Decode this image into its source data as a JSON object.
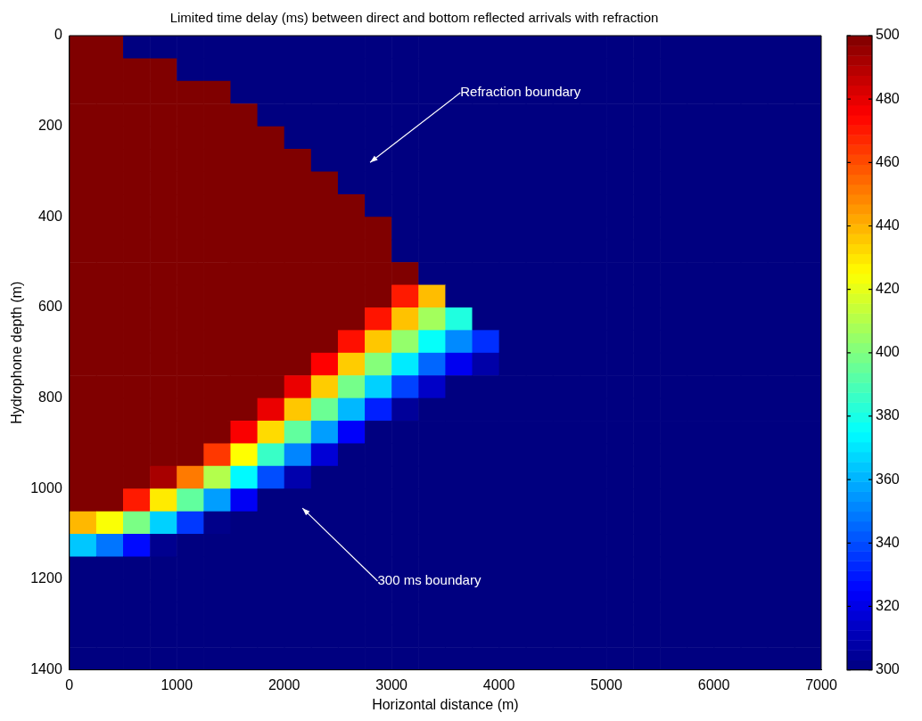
{
  "chart_data": {
    "type": "heatmap",
    "title": "Limited time delay (ms) between direct and bottom reflected arrivals with refraction",
    "xlabel": "Horizontal distance (m)",
    "ylabel": "Hydrophone depth (m)",
    "xlim": [
      0,
      7000
    ],
    "xticks": [
      0,
      1000,
      2000,
      3000,
      4000,
      5000,
      6000,
      7000
    ],
    "ylim": [
      1400,
      0
    ],
    "yticks": [
      0,
      200,
      400,
      600,
      800,
      1000,
      1200,
      1400
    ],
    "clim": [
      300,
      500
    ],
    "cticks": [
      300,
      320,
      340,
      360,
      380,
      400,
      420,
      440,
      460,
      480,
      500
    ],
    "annotations": [
      "Refraction boundary",
      "300 ms boundary"
    ],
    "x": [
      125,
      375,
      625,
      875,
      1125,
      1375,
      1625,
      1875,
      2125,
      2375,
      2625,
      2875,
      3125,
      3375,
      3625,
      3875,
      4125,
      4375,
      4625,
      4875,
      5125,
      5375,
      5625,
      5875,
      6125,
      6375,
      6625,
      6875
    ],
    "y": [
      25,
      75,
      125,
      175,
      225,
      275,
      325,
      375,
      425,
      475,
      525,
      575,
      625,
      675,
      725,
      775,
      825,
      875,
      925,
      975,
      1025,
      1075,
      1125,
      1175,
      1225,
      1275,
      1325,
      1375
    ],
    "cells": [
      [
        500,
        500,
        300,
        300,
        300,
        300,
        300,
        300,
        300,
        300,
        300,
        300,
        300,
        300,
        300,
        300,
        300,
        300,
        300,
        300,
        300,
        300,
        300,
        300,
        300,
        300,
        300,
        300
      ],
      [
        500,
        500,
        500,
        500,
        300,
        300,
        300,
        300,
        300,
        300,
        300,
        300,
        300,
        300,
        300,
        300,
        300,
        300,
        300,
        300,
        300,
        300,
        300,
        300,
        300,
        300,
        300,
        300
      ],
      [
        500,
        500,
        500,
        500,
        500,
        500,
        300,
        300,
        300,
        300,
        300,
        300,
        300,
        300,
        300,
        300,
        300,
        300,
        300,
        300,
        300,
        300,
        300,
        300,
        300,
        300,
        300,
        300
      ],
      [
        500,
        500,
        500,
        500,
        500,
        500,
        500,
        300,
        300,
        300,
        300,
        300,
        300,
        300,
        300,
        300,
        300,
        300,
        300,
        300,
        300,
        300,
        300,
        300,
        300,
        300,
        300,
        300
      ],
      [
        500,
        500,
        500,
        500,
        500,
        500,
        500,
        500,
        300,
        300,
        300,
        300,
        300,
        300,
        300,
        300,
        300,
        300,
        300,
        300,
        300,
        300,
        300,
        300,
        300,
        300,
        300,
        300
      ],
      [
        500,
        500,
        500,
        500,
        500,
        500,
        500,
        500,
        500,
        300,
        300,
        300,
        300,
        300,
        300,
        300,
        300,
        300,
        300,
        300,
        300,
        300,
        300,
        300,
        300,
        300,
        300,
        300
      ],
      [
        500,
        500,
        500,
        500,
        500,
        500,
        500,
        500,
        500,
        500,
        300,
        300,
        300,
        300,
        300,
        300,
        300,
        300,
        300,
        300,
        300,
        300,
        300,
        300,
        300,
        300,
        300,
        300
      ],
      [
        500,
        500,
        500,
        500,
        500,
        500,
        500,
        500,
        500,
        500,
        500,
        300,
        300,
        300,
        300,
        300,
        300,
        300,
        300,
        300,
        300,
        300,
        300,
        300,
        300,
        300,
        300,
        300
      ],
      [
        500,
        500,
        500,
        500,
        500,
        500,
        500,
        500,
        500,
        500,
        500,
        500,
        300,
        300,
        300,
        300,
        300,
        300,
        300,
        300,
        300,
        300,
        300,
        300,
        300,
        300,
        300,
        300
      ],
      [
        500,
        500,
        500,
        500,
        500,
        500,
        500,
        500,
        500,
        500,
        500,
        500,
        300,
        300,
        300,
        300,
        300,
        300,
        300,
        300,
        300,
        300,
        300,
        300,
        300,
        300,
        300,
        300
      ],
      [
        500,
        500,
        500,
        500,
        500,
        500,
        500,
        500,
        500,
        500,
        500,
        500,
        500,
        300,
        300,
        300,
        300,
        300,
        300,
        300,
        300,
        300,
        300,
        300,
        300,
        300,
        300,
        300
      ],
      [
        500,
        500,
        500,
        500,
        500,
        500,
        500,
        500,
        500,
        500,
        500,
        500,
        470,
        438,
        300,
        300,
        300,
        300,
        300,
        300,
        300,
        300,
        300,
        300,
        300,
        300,
        300,
        300
      ],
      [
        500,
        500,
        500,
        500,
        500,
        500,
        500,
        500,
        500,
        500,
        500,
        471,
        437,
        407,
        381,
        300,
        300,
        300,
        300,
        300,
        300,
        300,
        300,
        300,
        300,
        300,
        300,
        300
      ],
      [
        500,
        500,
        500,
        500,
        500,
        500,
        500,
        500,
        500,
        500,
        472,
        436,
        404,
        376,
        352,
        334,
        300,
        300,
        300,
        300,
        300,
        300,
        300,
        300,
        300,
        300,
        300,
        300
      ],
      [
        500,
        500,
        500,
        500,
        500,
        500,
        500,
        500,
        500,
        475,
        435,
        401,
        371,
        345,
        322,
        308,
        300,
        300,
        300,
        300,
        300,
        300,
        300,
        300,
        300,
        300,
        300,
        300
      ],
      [
        500,
        500,
        500,
        500,
        500,
        500,
        500,
        500,
        479,
        435,
        398,
        366,
        338,
        314,
        300,
        300,
        300,
        300,
        300,
        300,
        300,
        300,
        300,
        300,
        300,
        300,
        300,
        300
      ],
      [
        500,
        500,
        500,
        500,
        500,
        500,
        500,
        479,
        436,
        396,
        361,
        331,
        305,
        300,
        300,
        300,
        300,
        300,
        300,
        300,
        300,
        300,
        300,
        300,
        300,
        300,
        300,
        300
      ],
      [
        500,
        500,
        500,
        500,
        500,
        500,
        476,
        432,
        394,
        356,
        324,
        300,
        300,
        300,
        300,
        300,
        300,
        300,
        300,
        300,
        300,
        300,
        300,
        300,
        300,
        300,
        300,
        300
      ],
      [
        500,
        500,
        500,
        500,
        500,
        464,
        425,
        386,
        351,
        317,
        300,
        300,
        300,
        300,
        300,
        300,
        300,
        300,
        300,
        300,
        300,
        300,
        300,
        300,
        300,
        300,
        300,
        300
      ],
      [
        500,
        500,
        500,
        492,
        451,
        410,
        374,
        340,
        309,
        300,
        300,
        300,
        300,
        300,
        300,
        300,
        300,
        300,
        300,
        300,
        300,
        300,
        300,
        300,
        300,
        300,
        300,
        300
      ],
      [
        500,
        500,
        470,
        429,
        394,
        356,
        323,
        300,
        300,
        300,
        300,
        300,
        300,
        300,
        300,
        300,
        300,
        300,
        300,
        300,
        300,
        300,
        300,
        300,
        300,
        300,
        300,
        300
      ],
      [
        439,
        424,
        399,
        366,
        336,
        302,
        300,
        300,
        300,
        300,
        300,
        300,
        300,
        300,
        300,
        300,
        300,
        300,
        300,
        300,
        300,
        300,
        300,
        300,
        300,
        300,
        300,
        300
      ],
      [
        364,
        348,
        327,
        303,
        300,
        300,
        300,
        300,
        300,
        300,
        300,
        300,
        300,
        300,
        300,
        300,
        300,
        300,
        300,
        300,
        300,
        300,
        300,
        300,
        300,
        300,
        300,
        300
      ],
      [
        300,
        300,
        300,
        300,
        300,
        300,
        300,
        300,
        300,
        300,
        300,
        300,
        300,
        300,
        300,
        300,
        300,
        300,
        300,
        300,
        300,
        300,
        300,
        300,
        300,
        300,
        300,
        300
      ],
      [
        300,
        300,
        300,
        300,
        300,
        300,
        300,
        300,
        300,
        300,
        300,
        300,
        300,
        300,
        300,
        300,
        300,
        300,
        300,
        300,
        300,
        300,
        300,
        300,
        300,
        300,
        300,
        300
      ],
      [
        300,
        300,
        300,
        300,
        300,
        300,
        300,
        300,
        300,
        300,
        300,
        300,
        300,
        300,
        300,
        300,
        300,
        300,
        300,
        300,
        300,
        300,
        300,
        300,
        300,
        300,
        300,
        300
      ],
      [
        300,
        300,
        300,
        300,
        300,
        300,
        300,
        300,
        300,
        300,
        300,
        300,
        300,
        300,
        300,
        300,
        300,
        300,
        300,
        300,
        300,
        300,
        300,
        300,
        300,
        300,
        300,
        300
      ],
      [
        300,
        300,
        300,
        300,
        300,
        300,
        300,
        300,
        300,
        300,
        300,
        300,
        300,
        300,
        300,
        300,
        300,
        300,
        300,
        300,
        300,
        300,
        300,
        300,
        300,
        300,
        300,
        300
      ]
    ]
  }
}
